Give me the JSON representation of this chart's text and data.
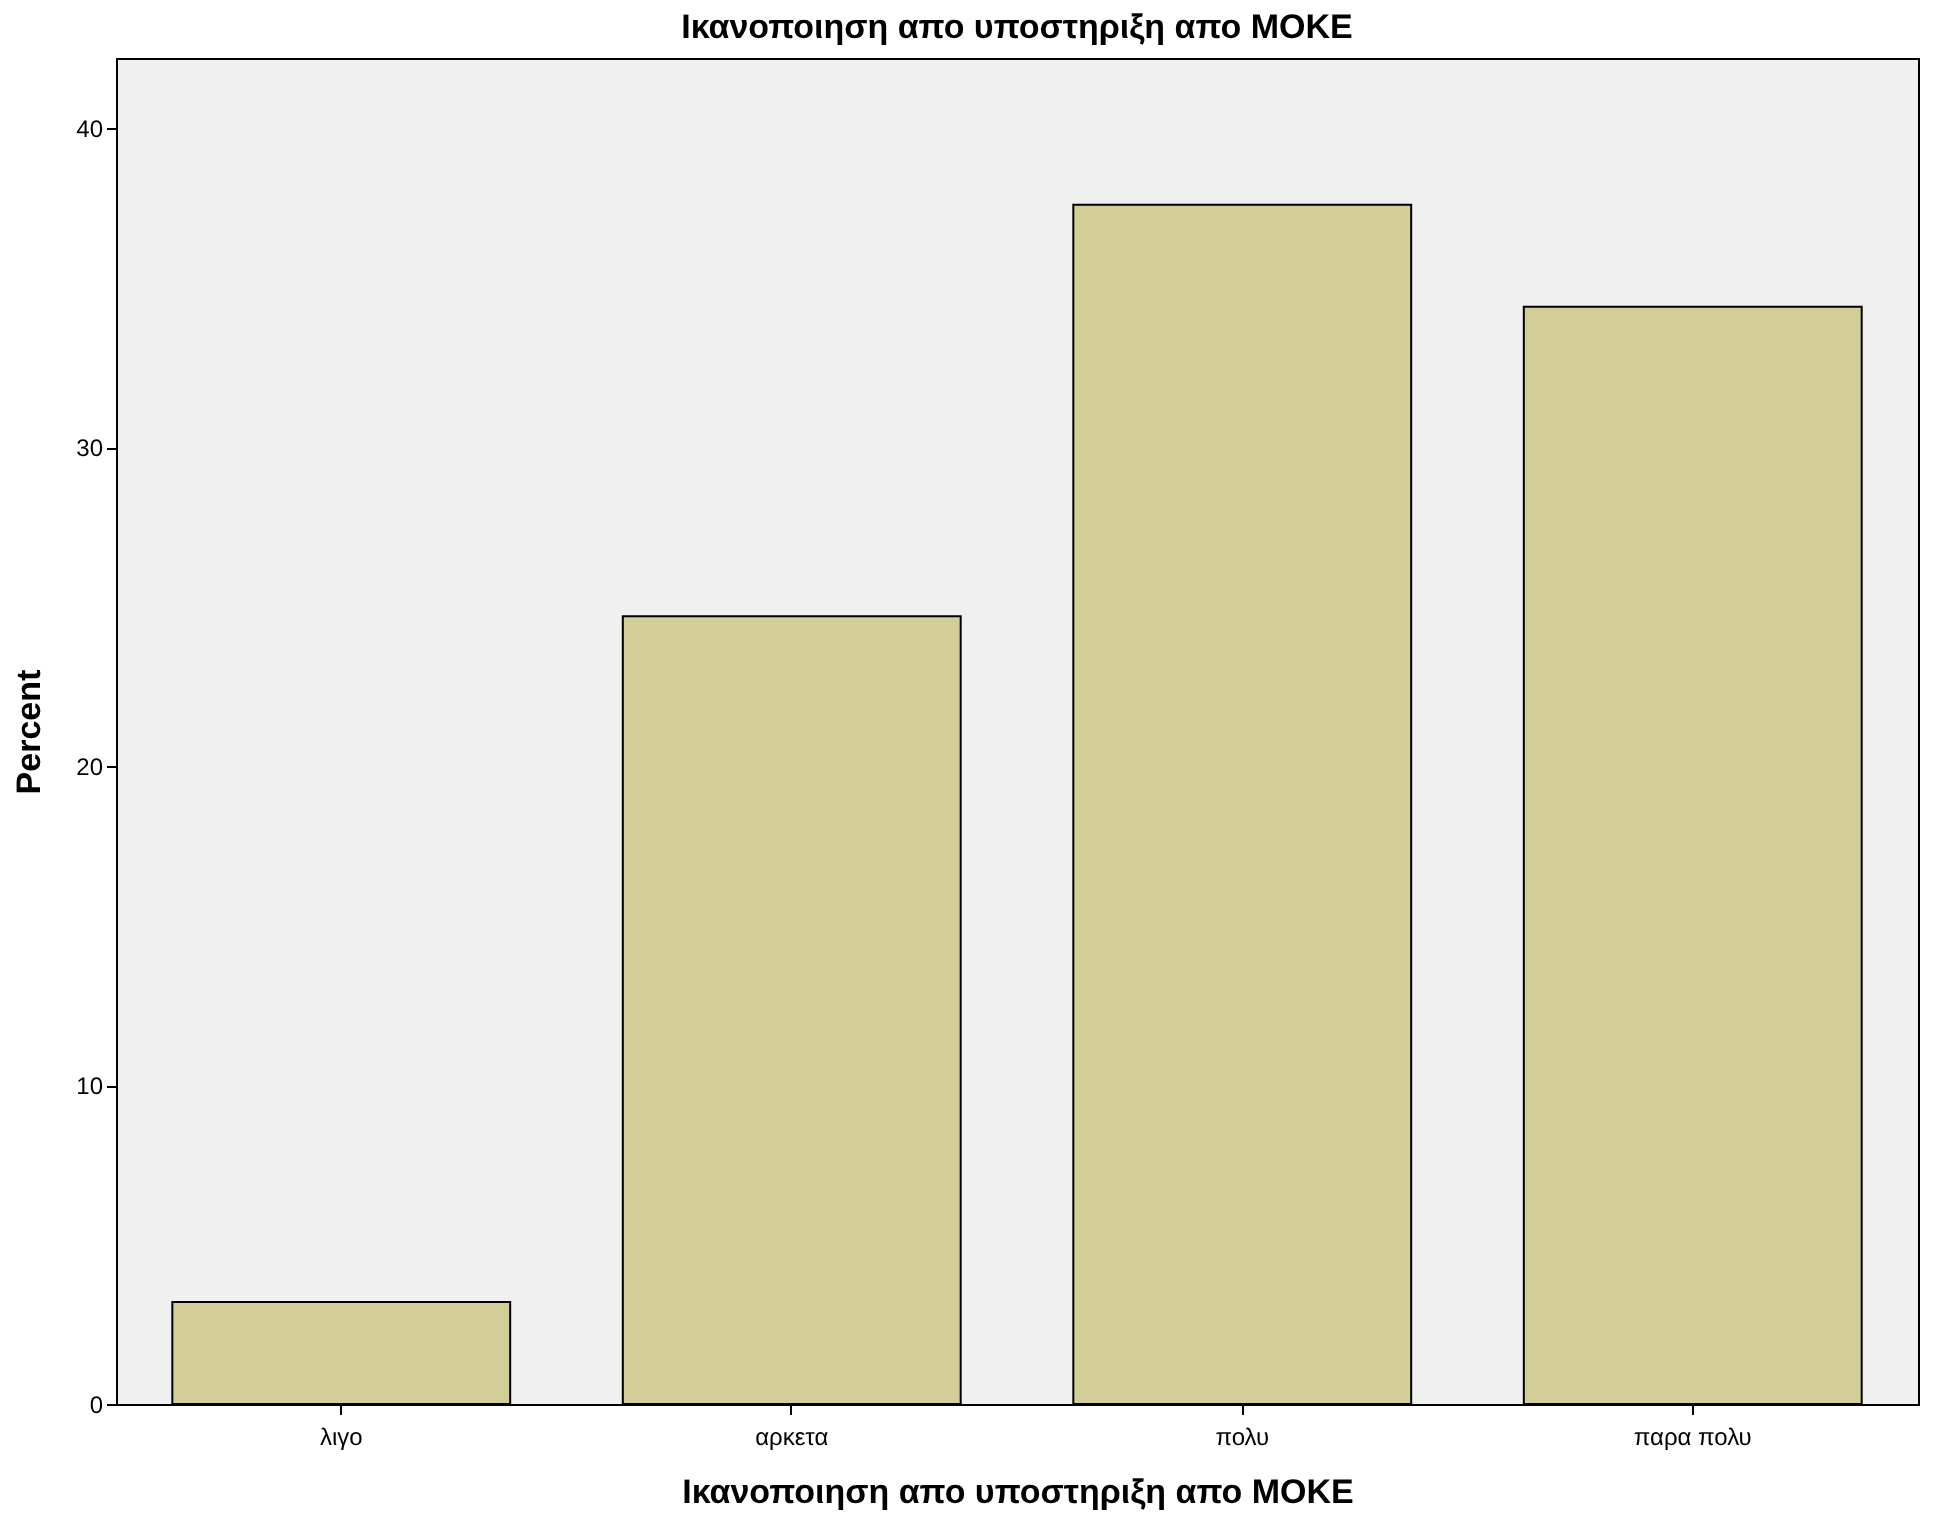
{
  "chart_data": {
    "type": "bar",
    "title": "Ικανοποιηση απο υποστηριξη απο ΜΟΚΕ",
    "xlabel": "Ικανοποιηση απο υποστηριξη απο ΜΟΚΕ",
    "ylabel": "Percent",
    "categories": [
      "λιγο",
      "αρκετα",
      "πολυ",
      "παρα πολυ"
    ],
    "values": [
      3.2,
      24.7,
      37.6,
      34.4
    ],
    "color": "#d3ce97",
    "ylim": [
      0,
      42.2
    ],
    "yticks": [
      0,
      10,
      20,
      30,
      40
    ],
    "grid": false
  }
}
